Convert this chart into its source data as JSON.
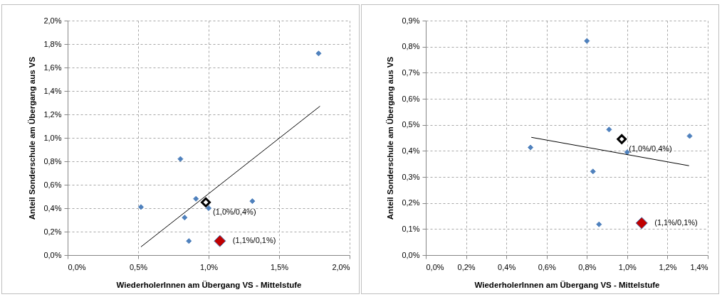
{
  "chart_data": [
    {
      "type": "scatter",
      "xlabel": "WiederholerInnen am Übergang VS - Mittelstufe",
      "ylabel": "Anteil Sonderschule  am Übergang aus VS",
      "marker": "diamond",
      "grid": true,
      "xlim": [
        0,
        2
      ],
      "xticks": [
        {
          "value": 0,
          "label": "0,0%"
        },
        {
          "value": 0.5,
          "label": "0,5%"
        },
        {
          "value": 1,
          "label": "1,0%"
        },
        {
          "value": 1.5,
          "label": "1,5%"
        },
        {
          "value": 2,
          "label": "2,0%"
        }
      ],
      "ylim": [
        0,
        2
      ],
      "yticks": [
        {
          "value": 0,
          "label": "0,0%"
        },
        {
          "value": 0.2,
          "label": "0,2%"
        },
        {
          "value": 0.4,
          "label": "0,4%"
        },
        {
          "value": 0.6,
          "label": "0,6%"
        },
        {
          "value": 0.8,
          "label": "0,8%"
        },
        {
          "value": 1,
          "label": "1,0%"
        },
        {
          "value": 1.2,
          "label": "1,2%"
        },
        {
          "value": 1.4,
          "label": "1,4%"
        },
        {
          "value": 1.6,
          "label": "1,6%"
        },
        {
          "value": 1.8,
          "label": "1,8%"
        },
        {
          "value": 2,
          "label": "2,0%"
        }
      ],
      "series": [
        {
          "type": "scatter",
          "color": "#4f81bd",
          "x": [
            0.52,
            0.8,
            0.83,
            0.86,
            0.91,
            1.0,
            1.31,
            1.78
          ],
          "values": [
            0.41,
            0.82,
            0.32,
            0.12,
            0.48,
            0.4,
            0.46,
            1.72
          ]
        },
        {
          "type": "scatter",
          "color": "#000000",
          "x": [
            0.98
          ],
          "values": [
            0.45
          ]
        },
        {
          "type": "scatter",
          "color": "#c00000",
          "x": [
            1.08
          ],
          "values": [
            0.12
          ]
        },
        {
          "type": "line",
          "color": "#000000",
          "marker": "none",
          "x": [
            0.52,
            1.79
          ],
          "values": [
            0.07,
            1.27
          ]
        }
      ],
      "annotations": [
        {
          "text": "(1,0%/0,4%)",
          "x": 0.98,
          "y": 0.45
        },
        {
          "text": "(1,1%/0,1%)",
          "x": 1.08,
          "y": 0.12
        }
      ]
    },
    {
      "type": "scatter",
      "xlabel": "WiederholerInnen am Übergang VS - Mittelstufe",
      "ylabel": "Anteil Sonderschule  am Übergang aus VS",
      "marker": "diamond",
      "grid": true,
      "xlim": [
        0,
        1.4
      ],
      "xticks": [
        {
          "value": 0,
          "label": "0,0%"
        },
        {
          "value": 0.2,
          "label": "0,2%"
        },
        {
          "value": 0.4,
          "label": "0,4%"
        },
        {
          "value": 0.6,
          "label": "0,6%"
        },
        {
          "value": 0.8,
          "label": "0,8%"
        },
        {
          "value": 1,
          "label": "1,0%"
        },
        {
          "value": 1.2,
          "label": "1,2%"
        },
        {
          "value": 1.4,
          "label": "1,4%"
        }
      ],
      "ylim": [
        0,
        0.9
      ],
      "yticks": [
        {
          "value": 0,
          "label": "0,0%"
        },
        {
          "value": 0.1,
          "label": "0,1%"
        },
        {
          "value": 0.2,
          "label": "0,2%"
        },
        {
          "value": 0.3,
          "label": "0,3%"
        },
        {
          "value": 0.4,
          "label": "0,4%"
        },
        {
          "value": 0.5,
          "label": "0,5%"
        },
        {
          "value": 0.6,
          "label": "0,6%"
        },
        {
          "value": 0.7,
          "label": "0,7%"
        },
        {
          "value": 0.8,
          "label": "0,8%"
        },
        {
          "value": 0.9,
          "label": "0,9%"
        }
      ],
      "series": [
        {
          "type": "scatter",
          "color": "#4f81bd",
          "x": [
            0.52,
            0.8,
            0.83,
            0.86,
            0.91,
            1.0,
            1.31
          ],
          "values": [
            0.413,
            0.822,
            0.321,
            0.118,
            0.482,
            0.395,
            0.457
          ]
        },
        {
          "type": "scatter",
          "color": "#000000",
          "x": [
            0.973
          ],
          "values": [
            0.445
          ]
        },
        {
          "type": "scatter",
          "color": "#c00000",
          "x": [
            1.072
          ],
          "values": [
            0.123
          ]
        },
        {
          "type": "line",
          "color": "#000000",
          "marker": "none",
          "x": [
            0.524,
            1.307
          ],
          "values": [
            0.452,
            0.343
          ]
        }
      ],
      "annotations": [
        {
          "text": "(1,0%/0,4%)",
          "x": 0.973,
          "y": 0.445
        },
        {
          "text": "(1,1%/0,1%)",
          "x": 1.072,
          "y": 0.123
        }
      ]
    }
  ]
}
